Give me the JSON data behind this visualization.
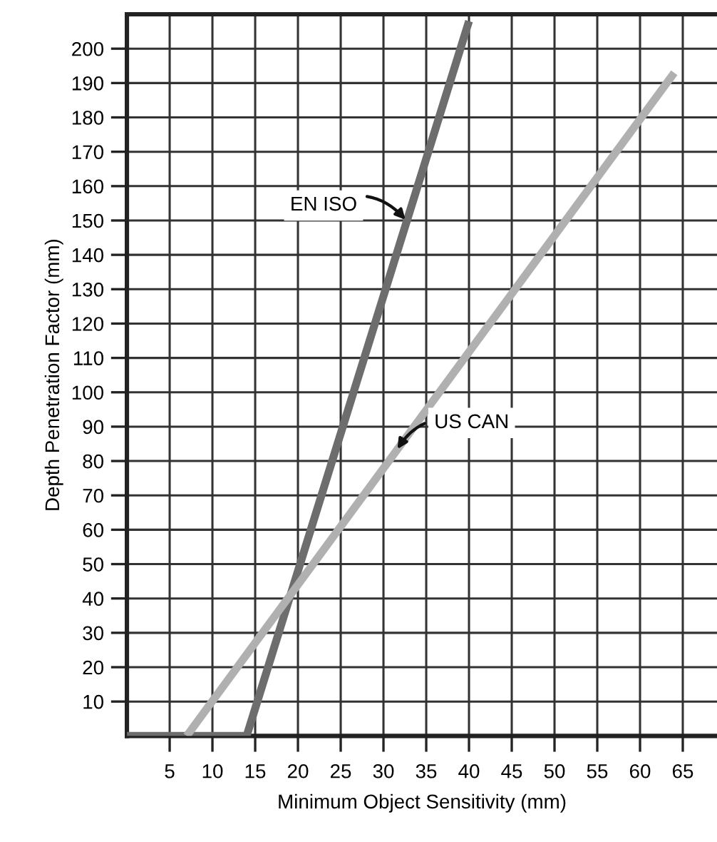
{
  "chart_data": {
    "type": "line",
    "xlabel": "Minimum Object Sensitivity (mm)",
    "ylabel": "Depth Penetration Factor (mm)",
    "series": [
      {
        "name": "EN ISO",
        "color": "#6d6d6d",
        "x": [
          0,
          14,
          40
        ],
        "values": [
          0,
          0,
          208
        ]
      },
      {
        "name": "US CAN",
        "color": "#b0b0b0",
        "x": [
          7,
          64
        ],
        "values": [
          0,
          193
        ]
      }
    ],
    "xlim": [
      0,
      69
    ],
    "ylim": [
      0,
      210
    ],
    "xticks": [
      5,
      10,
      15,
      20,
      25,
      30,
      35,
      40,
      45,
      50,
      55,
      60,
      65
    ],
    "yticks": [
      10,
      20,
      30,
      40,
      50,
      60,
      70,
      80,
      90,
      100,
      110,
      120,
      130,
      140,
      150,
      160,
      170,
      180,
      190,
      200
    ],
    "grid": true,
    "legend": false,
    "marker": "none",
    "line_style": "solid"
  }
}
